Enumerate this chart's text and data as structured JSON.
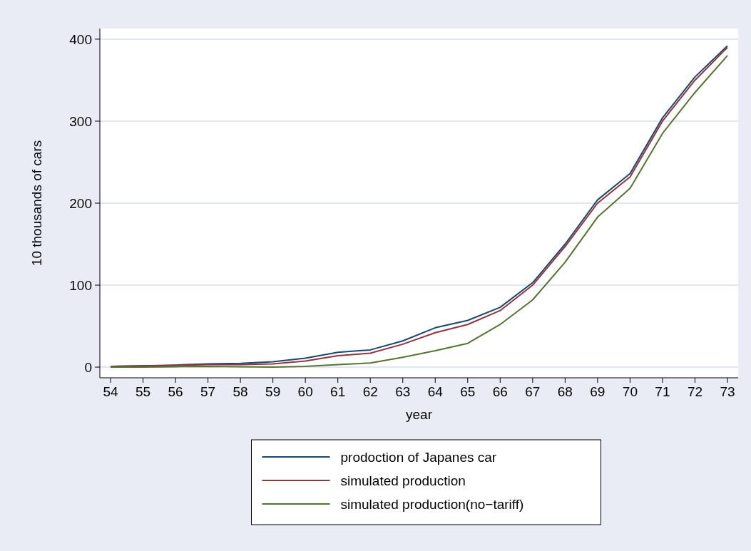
{
  "chart_data": {
    "type": "line",
    "xlabel": "year",
    "ylabel": "10 thousands of cars",
    "categories": [
      "54",
      "55",
      "56",
      "57",
      "58",
      "59",
      "60",
      "61",
      "62",
      "63",
      "64",
      "65",
      "66",
      "67",
      "68",
      "69",
      "70",
      "71",
      "72",
      "73"
    ],
    "series": [
      {
        "name": "prodoction of Japanes car",
        "color": "#1a476f",
        "values": [
          1,
          1.5,
          2.5,
          4,
          4.5,
          6.5,
          11,
          18,
          21,
          32,
          48,
          57,
          73,
          103,
          150,
          204,
          236,
          304,
          354,
          392
        ]
      },
      {
        "name": "simulated production",
        "color": "#90353b",
        "values": [
          1,
          1.5,
          2,
          3,
          3,
          4,
          7.5,
          14,
          17,
          28,
          42,
          52,
          69,
          100,
          147,
          200,
          232,
          300,
          350,
          390
        ]
      },
      {
        "name": "simulated production(no−tariff)",
        "color": "#55752f",
        "values": [
          0,
          0,
          0.5,
          1,
          0.5,
          0,
          1,
          3,
          5,
          12,
          20,
          29,
          52,
          82,
          128,
          183,
          218,
          285,
          335,
          380
        ]
      }
    ],
    "ylim": [
      -13,
      413
    ],
    "yticks": [
      0,
      100,
      200,
      300,
      400
    ],
    "grid": "y",
    "legend": "bottom"
  }
}
